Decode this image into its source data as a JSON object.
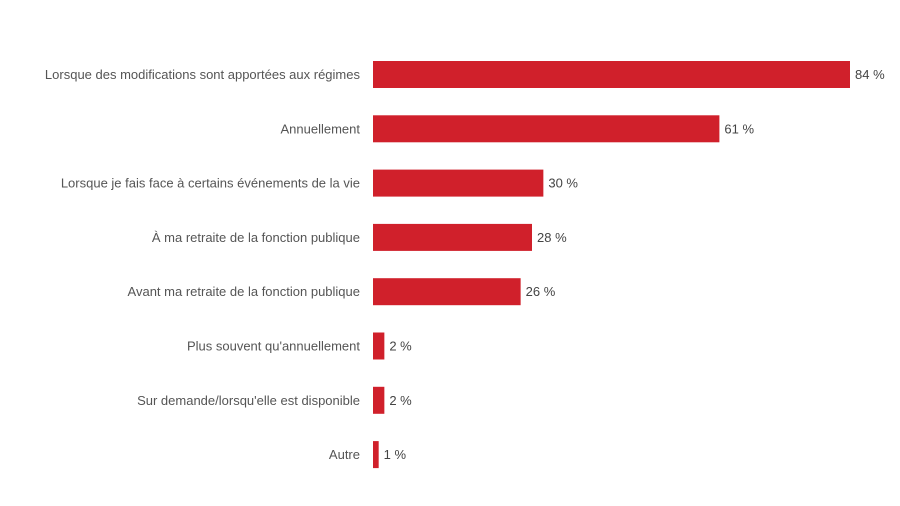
{
  "chart_data": {
    "type": "bar",
    "orientation": "horizontal",
    "categories": [
      "Lorsque des modifications sont apportées aux régimes",
      "Annuellement",
      "Lorsque je fais face à certains événements de la vie",
      "À ma retraite de la fonction publique",
      "Avant ma retraite de la fonction publique",
      "Plus souvent qu'annuellement",
      "Sur demande/lorsqu'elle est disponible",
      "Autre"
    ],
    "values": [
      84,
      61,
      30,
      28,
      26,
      2,
      2,
      1
    ],
    "value_labels": [
      "84 %",
      "61 %",
      "30 %",
      "28 %",
      "26 %",
      "2 %",
      "2 %",
      "1 %"
    ],
    "unit": "%",
    "xlim": [
      0,
      84
    ],
    "grid": false,
    "bar_color": "#d0202b"
  }
}
